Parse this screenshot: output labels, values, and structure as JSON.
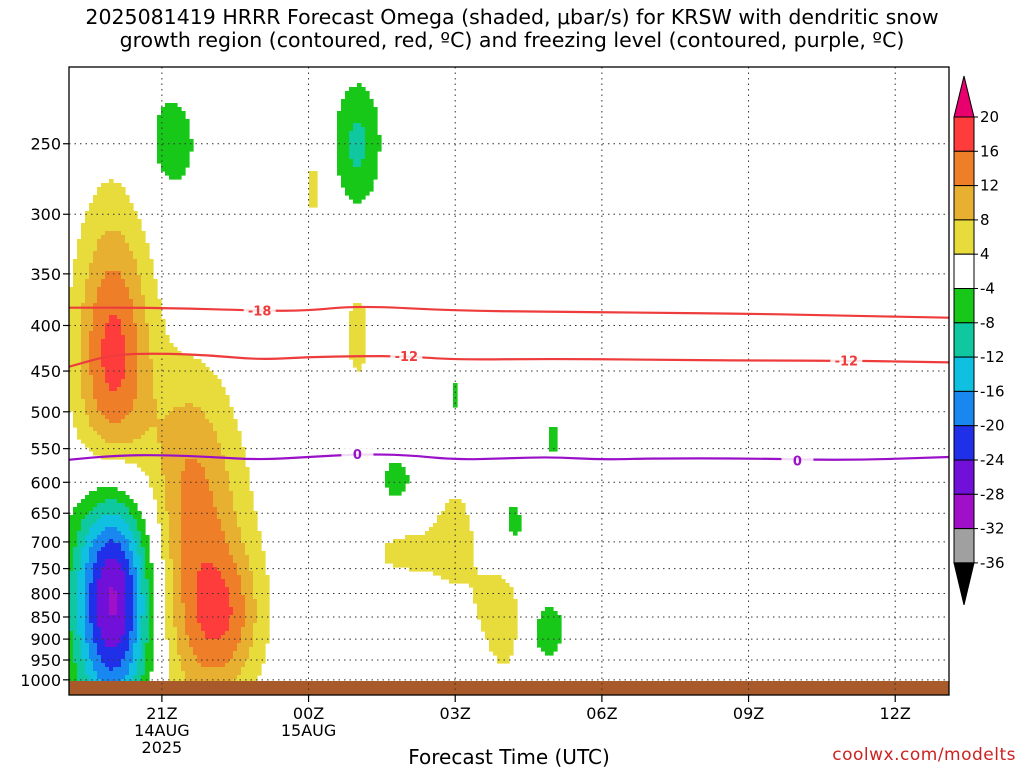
{
  "title": {
    "line1": "2025081419 HRRR Forecast Omega (shaded, μbar/s) for KRSW with dendritic snow",
    "line2": "growth region (contoured, red, ºC) and freezing level (contoured, purple, ºC)"
  },
  "watermark": "coolwx.com/modelts",
  "chart_data": {
    "type": "contour",
    "xlabel": "Forecast Time (UTC)",
    "ylabel": "",
    "x_range_hours": [
      -1.9,
      16.1
    ],
    "y_axis": {
      "log_scale": true,
      "range": [
        1040,
        205
      ],
      "ticks": [
        250,
        300,
        350,
        400,
        450,
        500,
        550,
        600,
        650,
        700,
        750,
        800,
        850,
        900,
        950,
        1000
      ]
    },
    "x_ticks": [
      {
        "hour": 0,
        "lines": [
          "21Z",
          "14AUG",
          "2025"
        ]
      },
      {
        "hour": 3,
        "lines": [
          "00Z",
          "15AUG"
        ]
      },
      {
        "hour": 6,
        "lines": [
          "03Z"
        ]
      },
      {
        "hour": 9,
        "lines": [
          "06Z"
        ]
      },
      {
        "hour": 12,
        "lines": [
          "09Z"
        ]
      },
      {
        "hour": 15,
        "lines": [
          "12Z"
        ]
      }
    ],
    "grid": true,
    "colorbar": {
      "units": "μbar/s",
      "labels": [
        "20",
        "16",
        "12",
        "8",
        "4",
        "-4",
        "-8",
        "-12",
        "-16",
        "-20",
        "-24",
        "-28",
        "-32",
        "-36"
      ],
      "colors": [
        "#e8006e",
        "#ff3c3c",
        "#ee7f28",
        "#e8b030",
        "#e8dc3c",
        "#ffffff",
        "#18c818",
        "#10c8a0",
        "#10c0e0",
        "#1888f0",
        "#2030e8",
        "#7010d8",
        "#a010c8",
        "#a0a0a0",
        "#000000"
      ]
    },
    "contours": [
      {
        "group": "dendritic",
        "color": "#ee3c3c",
        "label": "-18",
        "points": [
          [
            -1.9,
            382
          ],
          [
            0,
            382
          ],
          [
            2,
            385
          ],
          [
            3,
            385
          ],
          [
            4,
            380
          ],
          [
            6,
            385
          ],
          [
            8,
            386
          ],
          [
            10,
            387
          ],
          [
            12,
            388
          ],
          [
            14,
            390
          ],
          [
            16.1,
            392
          ]
        ],
        "labels_at": [
          [
            2,
            385
          ]
        ]
      },
      {
        "group": "dendritic",
        "color": "#ee3c3c",
        "label": "-12",
        "points": [
          [
            -1.9,
            445
          ],
          [
            -1,
            431
          ],
          [
            0,
            430
          ],
          [
            1,
            432
          ],
          [
            2,
            437
          ],
          [
            3,
            434
          ],
          [
            4,
            433
          ],
          [
            5,
            433
          ],
          [
            6,
            437
          ],
          [
            8,
            436
          ],
          [
            10,
            437
          ],
          [
            12,
            438
          ],
          [
            14,
            438
          ],
          [
            16.1,
            440
          ]
        ],
        "labels_at": [
          [
            5,
            433
          ],
          [
            14,
            438
          ]
        ]
      },
      {
        "group": "freezing",
        "color": "#9a10c8",
        "label": "0",
        "points": [
          [
            -1.9,
            566
          ],
          [
            -1,
            560
          ],
          [
            0,
            559
          ],
          [
            1,
            562
          ],
          [
            2,
            566
          ],
          [
            3,
            562
          ],
          [
            4,
            558
          ],
          [
            5,
            559
          ],
          [
            6,
            566
          ],
          [
            7,
            564
          ],
          [
            8,
            562
          ],
          [
            9,
            566
          ],
          [
            10,
            564
          ],
          [
            12,
            564
          ],
          [
            14,
            567
          ],
          [
            16.1,
            562
          ]
        ],
        "labels_at": [
          [
            4,
            558
          ],
          [
            13,
            567
          ]
        ]
      }
    ]
  }
}
